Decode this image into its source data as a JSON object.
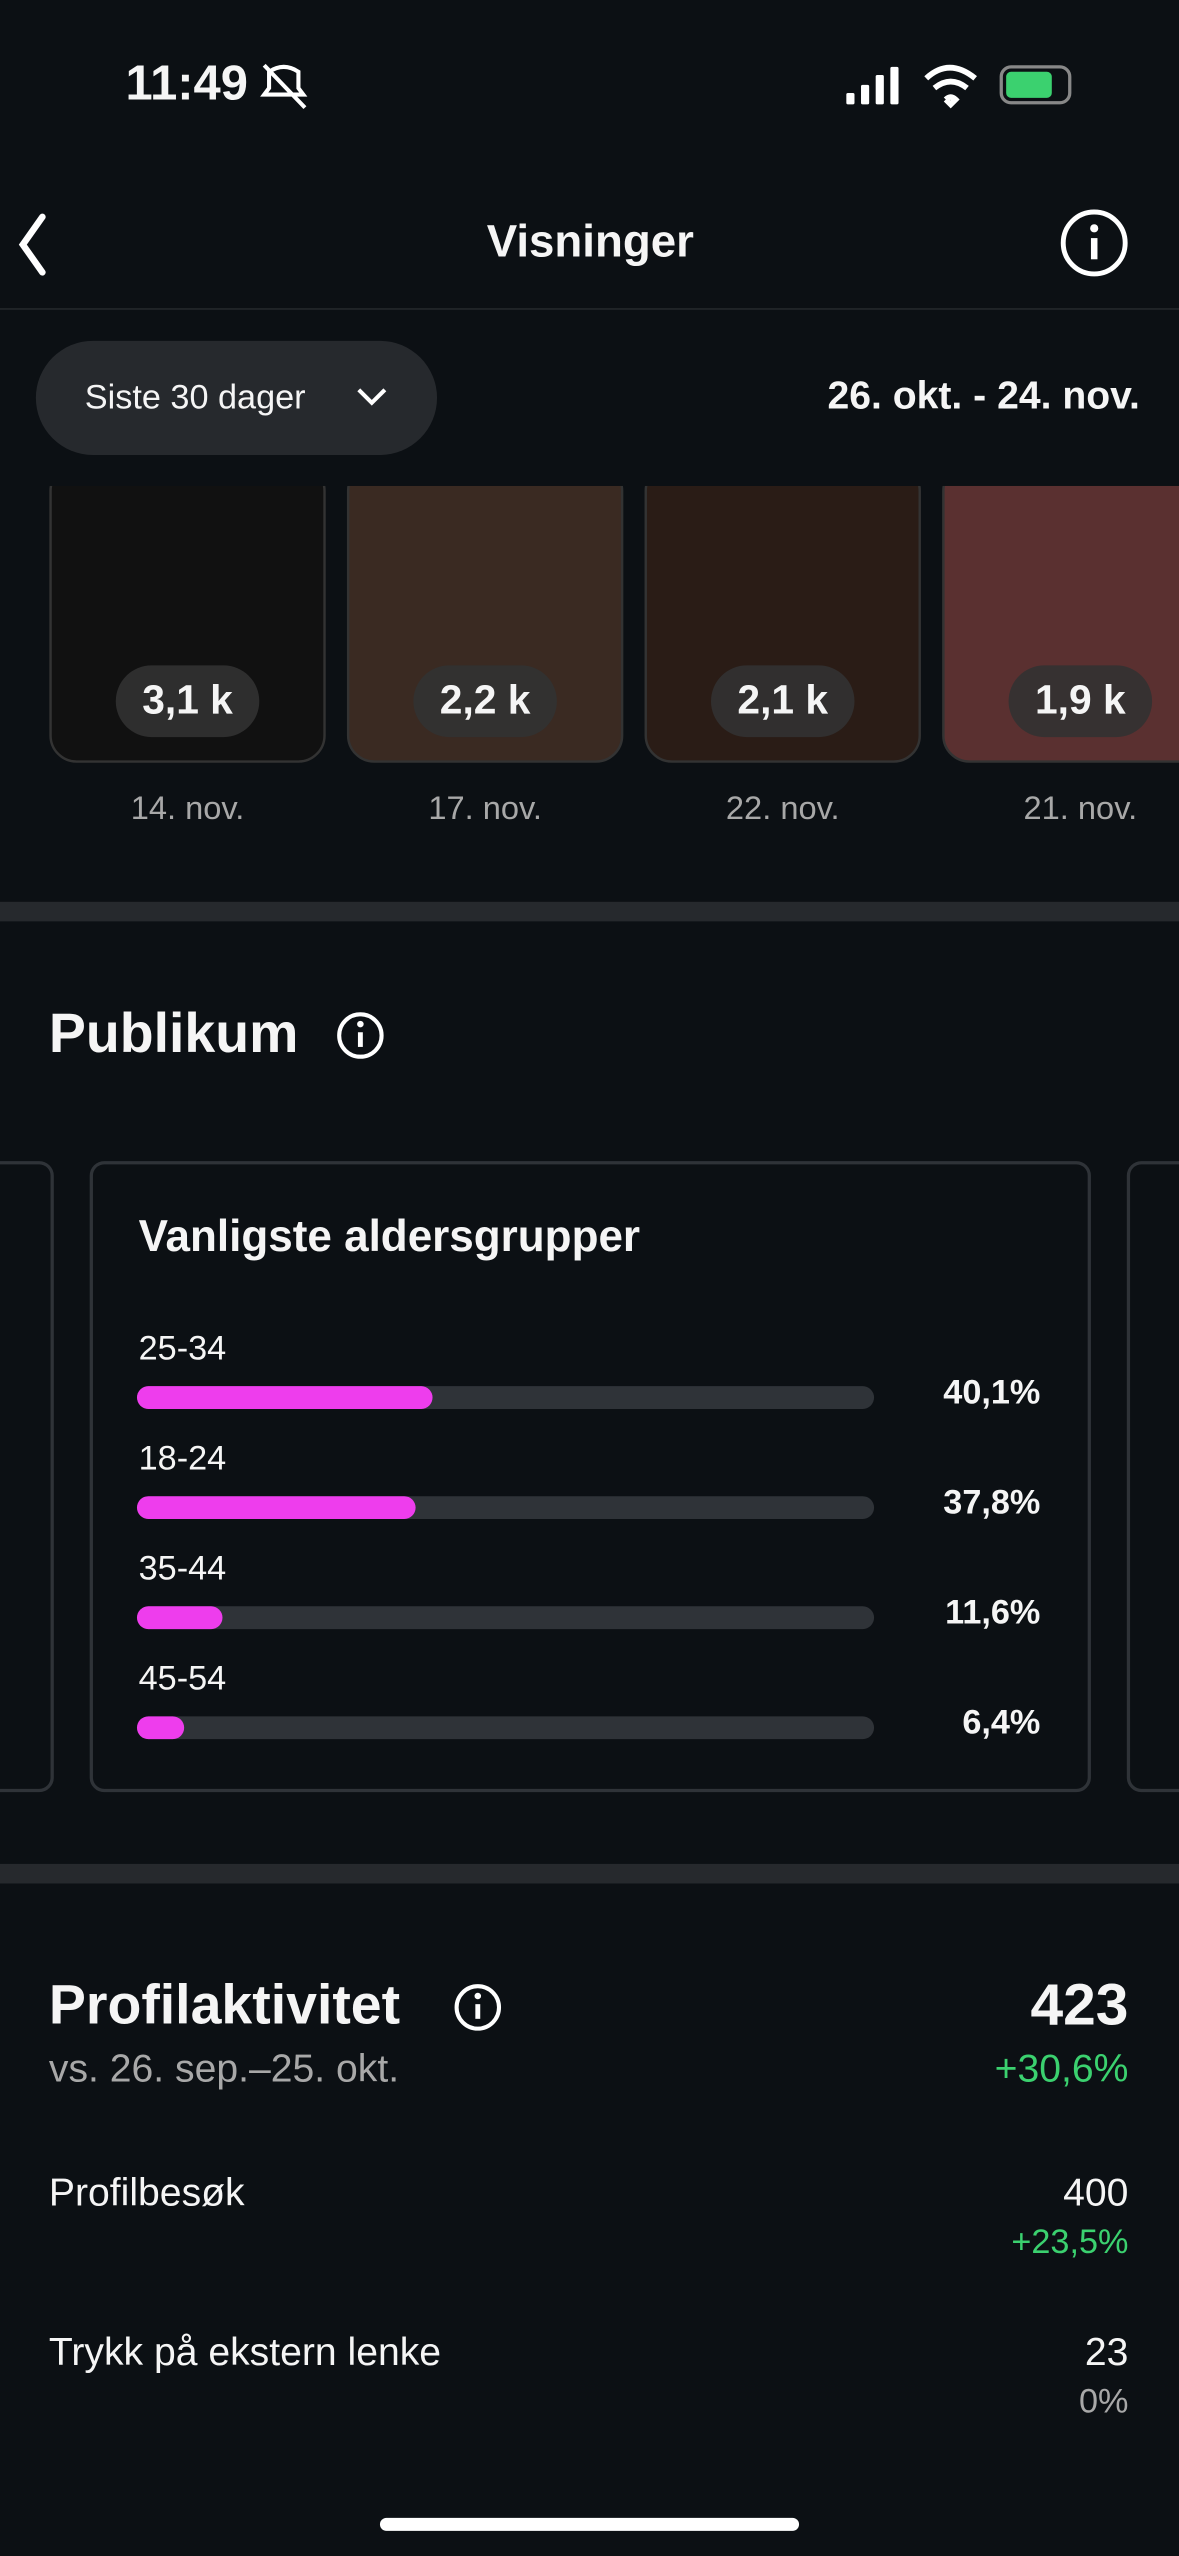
{
  "status_bar": {
    "time": "11:49"
  },
  "header": {
    "title": "Visninger"
  },
  "filter": {
    "period": "Siste 30 dager",
    "date_range": "26. okt. - 24. nov."
  },
  "posts": [
    {
      "views": "3,1 k",
      "date": "14. nov."
    },
    {
      "views": "2,2 k",
      "date": "17. nov."
    },
    {
      "views": "2,1 k",
      "date": "22. nov."
    },
    {
      "views": "1,9 k",
      "date": "21. nov."
    }
  ],
  "audience": {
    "title": "Publikum",
    "card_title": "Vanligste aldersgrupper",
    "age_groups": [
      {
        "label": "25-34",
        "value": 40.1,
        "value_label": "40,1%"
      },
      {
        "label": "18-24",
        "value": 37.8,
        "value_label": "37,8%"
      },
      {
        "label": "35-44",
        "value": 11.6,
        "value_label": "11,6%"
      },
      {
        "label": "45-54",
        "value": 6.4,
        "value_label": "6,4%"
      }
    ]
  },
  "profile_activity": {
    "title": "Profilaktivitet",
    "total": "423",
    "change": "+30,6%",
    "comparison": "vs. 26. sep.–25. okt.",
    "rows": [
      {
        "label": "Profilbesøk",
        "value": "400",
        "change": "+23,5%"
      },
      {
        "label": "Trykk på ekstern lenke",
        "value": "23",
        "change": "0%"
      }
    ]
  }
}
